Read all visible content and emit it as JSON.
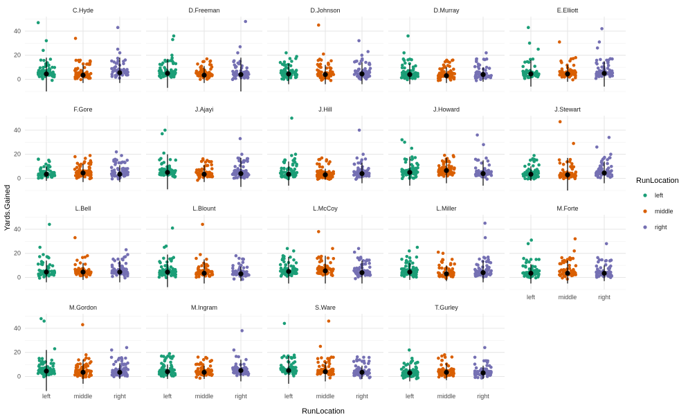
{
  "chart_data": {
    "type": "scatter",
    "subtype": "faceted jitter strip plot with mean ± sd",
    "xlabel": "RunLocation",
    "ylabel": "Yards.Gained",
    "categories": [
      "left",
      "middle",
      "right"
    ],
    "yticks": [
      0,
      20,
      40
    ],
    "ylim": [
      -10,
      52
    ],
    "grid": true,
    "legend": {
      "title": "RunLocation",
      "position": "right",
      "entries": [
        {
          "label": "left",
          "color": "#1B9E77"
        },
        {
          "label": "middle",
          "color": "#D95F02"
        },
        {
          "label": "right",
          "color": "#7570B3"
        }
      ]
    },
    "summary_color": "#000000",
    "facets": [
      {
        "name": "C.Hyde",
        "mean": [
          4.5,
          3.5,
          5.5
        ],
        "sd_low": [
          -10,
          -3,
          -3
        ],
        "sd_high": [
          18,
          12,
          18
        ],
        "outliers": [
          [
            47,
            24,
            32
          ],
          [
            34
          ],
          [
            43,
            25,
            22
          ]
        ]
      },
      {
        "name": "D.Freeman",
        "mean": [
          5,
          3.5,
          4
        ],
        "sd_low": [
          -7,
          -3,
          -10
        ],
        "sd_high": [
          17,
          11,
          18
        ],
        "outliers": [
          [
            36,
            33,
            20
          ],
          [
            17
          ],
          [
            48,
            27,
            22
          ]
        ]
      },
      {
        "name": "D.Johnson",
        "mean": [
          4.5,
          4,
          4.5
        ],
        "sd_low": [
          -4,
          -4,
          -4
        ],
        "sd_high": [
          13,
          12,
          14
        ],
        "outliers": [
          [
            22,
            19
          ],
          [
            45,
            21
          ],
          [
            32,
            23,
            20
          ]
        ]
      },
      {
        "name": "D.Murray",
        "mean": [
          4,
          3,
          4
        ],
        "sd_low": [
          -4,
          -3,
          -2
        ],
        "sd_high": [
          13,
          10,
          10
        ],
        "outliers": [
          [
            36,
            22
          ],
          [
            16
          ],
          [
            22,
            17
          ]
        ]
      },
      {
        "name": "E.Elliott",
        "mean": [
          4.5,
          4.5,
          5
        ],
        "sd_low": [
          -6,
          -2,
          -6
        ],
        "sd_high": [
          16,
          12,
          15
        ],
        "outliers": [
          [
            43,
            30,
            25
          ],
          [
            31,
            18
          ],
          [
            42,
            31,
            26
          ]
        ]
      },
      {
        "name": "F.Gore",
        "mean": [
          3.5,
          4.5,
          3.5
        ],
        "sd_low": [
          -2,
          -3,
          -3
        ],
        "sd_high": [
          10,
          12,
          11
        ],
        "outliers": [
          [
            16,
            14
          ],
          [
            19,
            18
          ],
          [
            22,
            19
          ]
        ]
      },
      {
        "name": "J.Ajayi",
        "mean": [
          5,
          3.5,
          4
        ],
        "sd_low": [
          -9,
          -3,
          -7
        ],
        "sd_high": [
          20,
          11,
          17
        ],
        "outliers": [
          [
            40,
            37,
            21
          ],
          [
            15
          ],
          [
            33,
            20
          ]
        ]
      },
      {
        "name": "J.Hill",
        "mean": [
          3.5,
          3,
          4
        ],
        "sd_low": [
          -6,
          -1,
          -4
        ],
        "sd_high": [
          14,
          8,
          13
        ],
        "outliers": [
          [
            50,
            20,
            19
          ],
          [
            17
          ],
          [
            40,
            20
          ]
        ]
      },
      {
        "name": "J.Howard",
        "mean": [
          5,
          6.5,
          4
        ],
        "sd_low": [
          -6,
          -4,
          -6
        ],
        "sd_high": [
          18,
          17,
          15
        ],
        "outliers": [
          [
            32,
            30,
            25
          ],
          [
            16
          ],
          [
            36,
            28
          ]
        ]
      },
      {
        "name": "J.Stewart",
        "mean": [
          3.5,
          3,
          4.5
        ],
        "sd_low": [
          -2,
          -10,
          -4
        ],
        "sd_high": [
          10,
          17,
          14
        ],
        "outliers": [
          [
            19,
            14
          ],
          [
            47,
            29
          ],
          [
            34,
            26,
            20
          ]
        ]
      },
      {
        "name": "L.Bell",
        "mean": [
          4.5,
          4.5,
          4.5
        ],
        "sd_low": [
          -4,
          -2,
          -4
        ],
        "sd_high": [
          14,
          12,
          14
        ],
        "outliers": [
          [
            44,
            25,
            19
          ],
          [
            33,
            18
          ],
          [
            23,
            19
          ]
        ]
      },
      {
        "name": "L.Blount",
        "mean": [
          4.5,
          3.5,
          3
        ],
        "sd_low": [
          -8,
          -5,
          -3
        ],
        "sd_high": [
          19,
          15,
          9
        ],
        "outliers": [
          [
            41,
            26,
            25
          ],
          [
            44,
            19
          ],
          [
            18
          ]
        ]
      },
      {
        "name": "L.McCoy",
        "mean": [
          5,
          5.5,
          4
        ],
        "sd_low": [
          -5,
          -5,
          -5
        ],
        "sd_high": [
          17,
          18,
          14
        ],
        "outliers": [
          [
            24,
            22
          ],
          [
            38,
            24
          ],
          [
            24,
            21
          ]
        ]
      },
      {
        "name": "L.Miller",
        "mean": [
          4.5,
          3,
          4
        ],
        "sd_low": [
          -2,
          -3,
          -4
        ],
        "sd_high": [
          12,
          10,
          14
        ],
        "outliers": [
          [
            25,
            22
          ],
          [
            21,
            20
          ],
          [
            45,
            33
          ]
        ]
      },
      {
        "name": "M.Forte",
        "mean": [
          3.5,
          3.5,
          3.5
        ],
        "sd_low": [
          -5,
          -5,
          -3
        ],
        "sd_high": [
          11,
          14,
          10
        ],
        "outliers": [
          [
            31,
            28,
            15
          ],
          [
            32,
            22
          ],
          [
            28,
            14
          ]
        ]
      },
      {
        "name": "M.Gordon",
        "mean": [
          4.5,
          3.5,
          3.5
        ],
        "sd_low": [
          -12,
          -6,
          -2
        ],
        "sd_high": [
          22,
          14,
          11
        ],
        "outliers": [
          [
            48,
            46,
            23
          ],
          [
            43,
            18
          ],
          [
            24,
            22
          ]
        ]
      },
      {
        "name": "M.Ingram",
        "mean": [
          4,
          3.5,
          5
        ],
        "sd_low": [
          -2,
          -2,
          -4
        ],
        "sd_high": [
          10,
          9,
          14
        ],
        "outliers": [
          [
            19,
            15
          ],
          [
            14
          ],
          [
            38,
            22
          ]
        ]
      },
      {
        "name": "S.Ware",
        "mean": [
          5,
          4,
          3.5
        ],
        "sd_low": [
          -6,
          -4,
          -2
        ],
        "sd_high": [
          17,
          12,
          9
        ],
        "outliers": [
          [
            44,
            17
          ],
          [
            46,
            25
          ],
          [
            14,
            13
          ]
        ]
      },
      {
        "name": "T.Gurley",
        "mean": [
          3,
          3.5,
          3
        ],
        "sd_low": [
          -4,
          -3,
          -2
        ],
        "sd_high": [
          10,
          11,
          9
        ],
        "outliers": [
          [
            22,
            13
          ],
          [
            18,
            17
          ],
          [
            24,
            13
          ]
        ]
      }
    ]
  }
}
